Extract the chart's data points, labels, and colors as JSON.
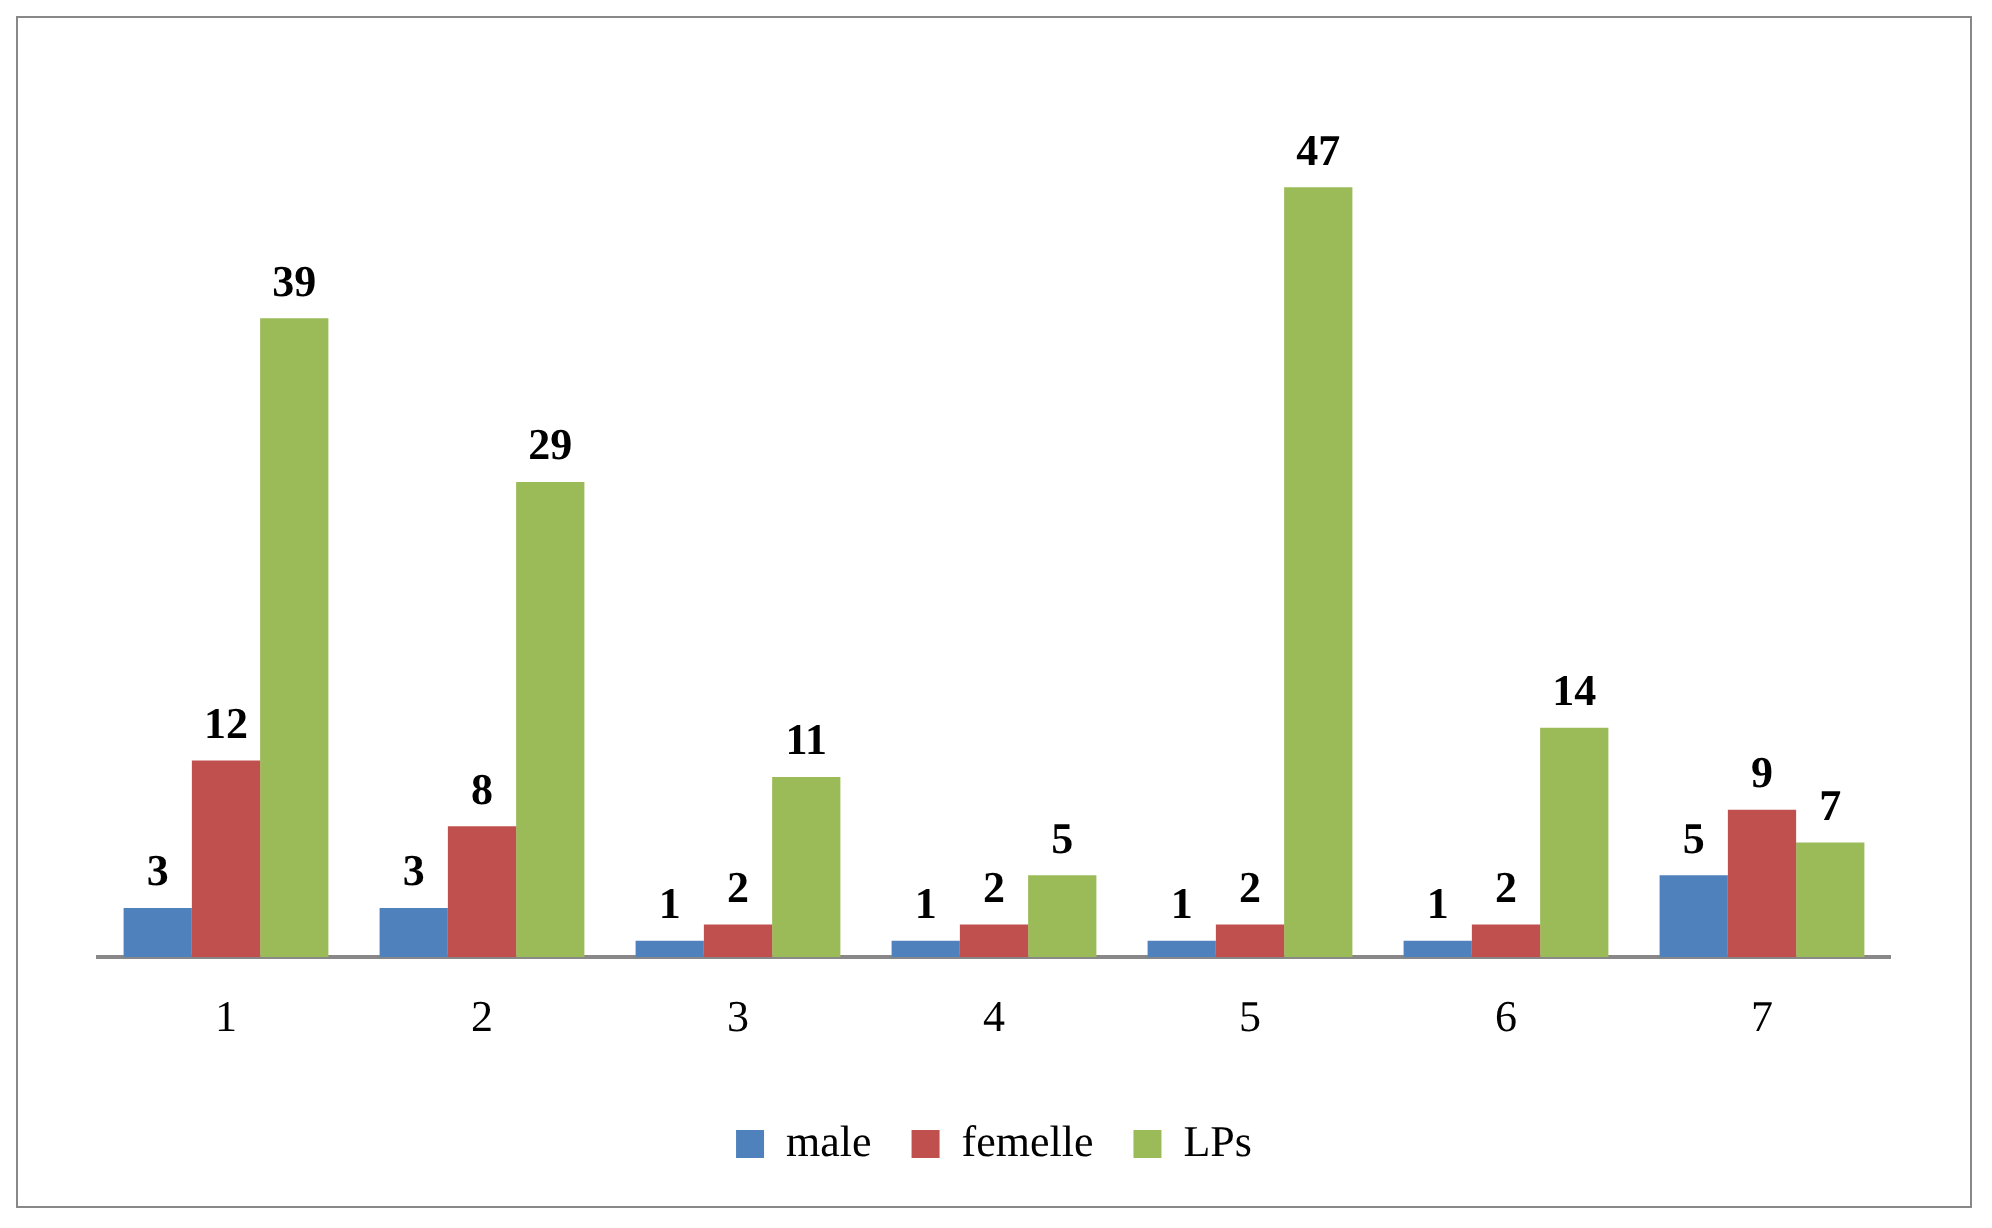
{
  "chart_data": {
    "type": "bar",
    "categories": [
      "1",
      "2",
      "3",
      "4",
      "5",
      "6",
      "7"
    ],
    "series": [
      {
        "name": "male",
        "color": "#4f81bd",
        "values": [
          3,
          3,
          1,
          1,
          1,
          1,
          5
        ]
      },
      {
        "name": "femelle",
        "color": "#c0504d",
        "values": [
          12,
          8,
          2,
          2,
          2,
          2,
          9
        ]
      },
      {
        "name": "LPs",
        "color": "#9bbb59",
        "values": [
          39,
          29,
          11,
          5,
          47,
          14,
          7
        ]
      }
    ],
    "data_labels": true,
    "legend": "bottom",
    "grid": false,
    "tick_labels": "x"
  }
}
